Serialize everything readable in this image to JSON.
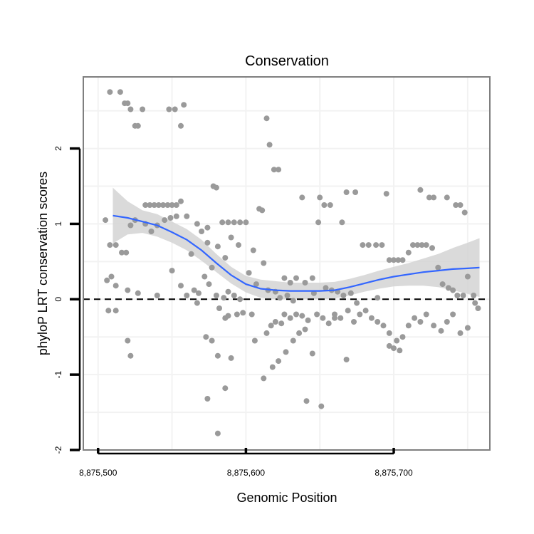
{
  "chart_data": {
    "type": "scatter",
    "title": "Conservation",
    "xlabel": "Genomic Position",
    "ylabel": "phyloP LRT conservation scores",
    "xlim": [
      8875490,
      8875765
    ],
    "ylim": [
      -2.0,
      2.95
    ],
    "x_ticks": [
      8875500,
      8875600,
      8875700
    ],
    "x_tick_labels": [
      "8,875,500",
      "8,875,600",
      "8,875,700"
    ],
    "y_ticks": [
      -2,
      -1,
      0,
      1,
      2
    ],
    "y_tick_labels": [
      "-2",
      "-1",
      "0",
      "1",
      "2"
    ],
    "grid": true,
    "reference_line": {
      "y": 0,
      "style": "dashed"
    },
    "colors": {
      "points": "#9a9a9a",
      "smooth": "#3366ff",
      "band": "#d3d3d3",
      "frame": "#7f7f7f",
      "grid": "#f2f2f2"
    },
    "points": [
      [
        8875508,
        2.75
      ],
      [
        8875515,
        2.75
      ],
      [
        8875518,
        2.6
      ],
      [
        8875520,
        2.6
      ],
      [
        8875522,
        2.52
      ],
      [
        8875525,
        2.3
      ],
      [
        8875527,
        2.3
      ],
      [
        8875530,
        2.52
      ],
      [
        8875548,
        2.52
      ],
      [
        8875552,
        2.52
      ],
      [
        8875556,
        2.3
      ],
      [
        8875558,
        2.58
      ],
      [
        8875614,
        2.4
      ],
      [
        8875616,
        2.05
      ],
      [
        8875619,
        1.72
      ],
      [
        8875622,
        1.72
      ],
      [
        8875578,
        1.5
      ],
      [
        8875580,
        1.48
      ],
      [
        8875609,
        1.2
      ],
      [
        8875611,
        1.18
      ],
      [
        8875638,
        1.35
      ],
      [
        8875650,
        1.35
      ],
      [
        8875668,
        1.42
      ],
      [
        8875674,
        1.42
      ],
      [
        8875695,
        1.4
      ],
      [
        8875718,
        1.45
      ],
      [
        8875724,
        1.35
      ],
      [
        8875727,
        1.35
      ],
      [
        8875736,
        1.35
      ],
      [
        8875742,
        1.25
      ],
      [
        8875745,
        1.25
      ],
      [
        8875748,
        1.15
      ],
      [
        8875505,
        1.05
      ],
      [
        8875508,
        0.72
      ],
      [
        8875512,
        0.72
      ],
      [
        8875516,
        0.62
      ],
      [
        8875519,
        0.62
      ],
      [
        8875522,
        0.98
      ],
      [
        8875525,
        1.05
      ],
      [
        8875532,
        1.25
      ],
      [
        8875535,
        1.25
      ],
      [
        8875538,
        1.25
      ],
      [
        8875541,
        1.25
      ],
      [
        8875544,
        1.25
      ],
      [
        8875547,
        1.25
      ],
      [
        8875550,
        1.25
      ],
      [
        8875553,
        1.25
      ],
      [
        8875556,
        1.3
      ],
      [
        8875532,
        1.0
      ],
      [
        8875536,
        0.9
      ],
      [
        8875540,
        0.98
      ],
      [
        8875545,
        1.05
      ],
      [
        8875549,
        1.08
      ],
      [
        8875553,
        1.1
      ],
      [
        8875560,
        1.1
      ],
      [
        8875563,
        0.6
      ],
      [
        8875567,
        1.0
      ],
      [
        8875570,
        0.9
      ],
      [
        8875574,
        0.95
      ],
      [
        8875584,
        1.02
      ],
      [
        8875588,
        1.02
      ],
      [
        8875592,
        1.02
      ],
      [
        8875596,
        1.02
      ],
      [
        8875600,
        1.02
      ],
      [
        8875574,
        0.75
      ],
      [
        8875577,
        0.42
      ],
      [
        8875581,
        0.7
      ],
      [
        8875586,
        0.55
      ],
      [
        8875590,
        0.82
      ],
      [
        8875595,
        0.72
      ],
      [
        8875605,
        0.65
      ],
      [
        8875612,
        0.48
      ],
      [
        8875602,
        0.35
      ],
      [
        8875607,
        0.2
      ],
      [
        8875620,
        0.1
      ],
      [
        8875626,
        0.28
      ],
      [
        8875630,
        0.22
      ],
      [
        8875634,
        0.28
      ],
      [
        8875640,
        0.22
      ],
      [
        8875645,
        0.28
      ],
      [
        8875649,
        1.02
      ],
      [
        8875653,
        1.25
      ],
      [
        8875657,
        1.25
      ],
      [
        8875665,
        1.02
      ],
      [
        8875679,
        0.72
      ],
      [
        8875683,
        0.72
      ],
      [
        8875688,
        0.72
      ],
      [
        8875692,
        0.72
      ],
      [
        8875697,
        0.52
      ],
      [
        8875700,
        0.52
      ],
      [
        8875703,
        0.52
      ],
      [
        8875706,
        0.52
      ],
      [
        8875710,
        0.62
      ],
      [
        8875713,
        0.72
      ],
      [
        8875716,
        0.72
      ],
      [
        8875719,
        0.72
      ],
      [
        8875722,
        0.72
      ],
      [
        8875726,
        0.68
      ],
      [
        8875730,
        0.42
      ],
      [
        8875733,
        0.2
      ],
      [
        8875737,
        0.15
      ],
      [
        8875740,
        0.12
      ],
      [
        8875743,
        0.05
      ],
      [
        8875747,
        0.05
      ],
      [
        8875750,
        0.3
      ],
      [
        8875754,
        0.05
      ],
      [
        8875506,
        0.25
      ],
      [
        8875509,
        0.3
      ],
      [
        8875512,
        0.18
      ],
      [
        8875520,
        0.12
      ],
      [
        8875527,
        0.08
      ],
      [
        8875540,
        0.05
      ],
      [
        8875550,
        0.38
      ],
      [
        8875556,
        0.18
      ],
      [
        8875560,
        0.05
      ],
      [
        8875565,
        0.12
      ],
      [
        8875568,
        0.08
      ],
      [
        8875572,
        0.3
      ],
      [
        8875575,
        0.2
      ],
      [
        8875580,
        0.05
      ],
      [
        8875585,
        0.02
      ],
      [
        8875588,
        0.1
      ],
      [
        8875592,
        0.05
      ],
      [
        8875596,
        0.0
      ],
      [
        8875615,
        0.12
      ],
      [
        8875623,
        0.02
      ],
      [
        8875628,
        0.05
      ],
      [
        8875632,
        -0.02
      ],
      [
        8875646,
        0.08
      ],
      [
        8875654,
        0.15
      ],
      [
        8875658,
        0.12
      ],
      [
        8875662,
        0.1
      ],
      [
        8875666,
        0.05
      ],
      [
        8875671,
        0.08
      ],
      [
        8875675,
        -0.05
      ],
      [
        8875689,
        0.02
      ],
      [
        8875507,
        -0.15
      ],
      [
        8875512,
        -0.15
      ],
      [
        8875520,
        -0.55
      ],
      [
        8875522,
        -0.75
      ],
      [
        8875567,
        -0.05
      ],
      [
        8875582,
        -0.12
      ],
      [
        8875586,
        -0.25
      ],
      [
        8875588,
        -0.22
      ],
      [
        8875594,
        -0.2
      ],
      [
        8875598,
        -0.18
      ],
      [
        8875604,
        -0.2
      ],
      [
        8875606,
        -0.55
      ],
      [
        8875614,
        -0.45
      ],
      [
        8875617,
        -0.35
      ],
      [
        8875620,
        -0.3
      ],
      [
        8875624,
        -0.32
      ],
      [
        8875626,
        -0.2
      ],
      [
        8875630,
        -0.25
      ],
      [
        8875634,
        -0.2
      ],
      [
        8875638,
        -0.22
      ],
      [
        8875642,
        -0.28
      ],
      [
        8875648,
        -0.2
      ],
      [
        8875652,
        -0.25
      ],
      [
        8875656,
        -0.32
      ],
      [
        8875660,
        -0.2
      ],
      [
        8875664,
        -0.25
      ],
      [
        8875669,
        -0.15
      ],
      [
        8875673,
        -0.3
      ],
      [
        8875677,
        -0.2
      ],
      [
        8875681,
        -0.15
      ],
      [
        8875685,
        -0.25
      ],
      [
        8875689,
        -0.3
      ],
      [
        8875693,
        -0.35
      ],
      [
        8875697,
        -0.45
      ],
      [
        8875702,
        -0.55
      ],
      [
        8875706,
        -0.5
      ],
      [
        8875710,
        -0.35
      ],
      [
        8875714,
        -0.25
      ],
      [
        8875718,
        -0.3
      ],
      [
        8875722,
        -0.2
      ],
      [
        8875727,
        -0.35
      ],
      [
        8875732,
        -0.42
      ],
      [
        8875736,
        -0.3
      ],
      [
        8875740,
        -0.2
      ],
      [
        8875745,
        -0.45
      ],
      [
        8875750,
        -0.38
      ],
      [
        8875755,
        -0.05
      ],
      [
        8875757,
        -0.12
      ],
      [
        8875573,
        -0.5
      ],
      [
        8875577,
        -0.55
      ],
      [
        8875581,
        -0.75
      ],
      [
        8875586,
        -1.18
      ],
      [
        8875590,
        -0.78
      ],
      [
        8875574,
        -1.32
      ],
      [
        8875581,
        -1.78
      ],
      [
        8875612,
        -1.05
      ],
      [
        8875618,
        -0.9
      ],
      [
        8875622,
        -0.82
      ],
      [
        8875627,
        -0.7
      ],
      [
        8875632,
        -0.55
      ],
      [
        8875636,
        -0.45
      ],
      [
        8875640,
        -0.4
      ],
      [
        8875645,
        -0.72
      ],
      [
        8875641,
        -1.35
      ],
      [
        8875651,
        -1.42
      ],
      [
        8875697,
        -0.62
      ],
      [
        8875700,
        -0.65
      ],
      [
        8875704,
        -0.68
      ],
      [
        8875668,
        -0.8
      ],
      [
        8875660,
        -0.25
      ]
    ],
    "smooth": {
      "x": [
        8875510,
        8875520,
        8875530,
        8875540,
        8875550,
        8875560,
        8875570,
        8875580,
        8875590,
        8875600,
        8875610,
        8875620,
        8875630,
        8875640,
        8875650,
        8875660,
        8875670,
        8875680,
        8875690,
        8875700,
        8875710,
        8875720,
        8875730,
        8875740,
        8875750,
        8875758
      ],
      "y": [
        1.11,
        1.08,
        1.03,
        0.98,
        0.89,
        0.79,
        0.65,
        0.48,
        0.32,
        0.2,
        0.14,
        0.12,
        0.11,
        0.11,
        0.11,
        0.12,
        0.16,
        0.21,
        0.26,
        0.3,
        0.33,
        0.36,
        0.38,
        0.4,
        0.41,
        0.42
      ],
      "ymin": [
        0.74,
        0.86,
        0.88,
        0.83,
        0.75,
        0.65,
        0.51,
        0.36,
        0.21,
        0.09,
        0.02,
        0.0,
        0.0,
        0.0,
        0.0,
        0.01,
        0.05,
        0.1,
        0.14,
        0.17,
        0.18,
        0.18,
        0.16,
        0.12,
        0.07,
        0.03
      ],
      "ymax": [
        1.48,
        1.3,
        1.18,
        1.13,
        1.03,
        0.93,
        0.79,
        0.6,
        0.43,
        0.31,
        0.26,
        0.24,
        0.22,
        0.22,
        0.22,
        0.23,
        0.27,
        0.32,
        0.38,
        0.43,
        0.48,
        0.54,
        0.6,
        0.68,
        0.75,
        0.81
      ]
    }
  }
}
